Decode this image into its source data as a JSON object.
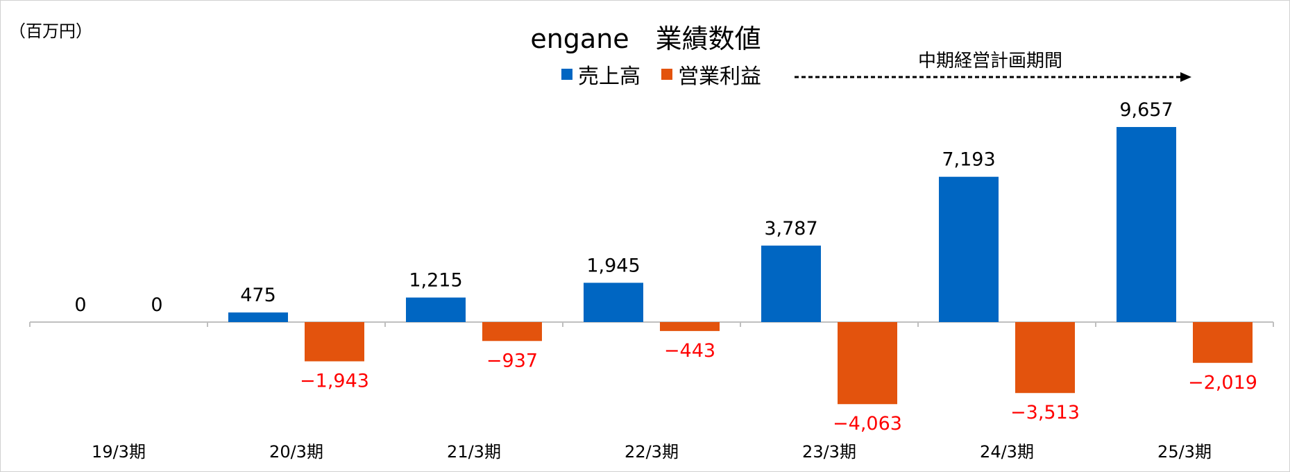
{
  "chart_data": {
    "type": "bar",
    "title": "engane　業績数値",
    "unit_label": "（百万円）",
    "categories": [
      "19/3期",
      "20/3期",
      "21/3期",
      "22/3期",
      "23/3期",
      "24/3期",
      "25/3期"
    ],
    "series": [
      {
        "name": "売上高",
        "color": "#0066c2",
        "values": [
          0,
          475,
          1215,
          1945,
          3787,
          7193,
          9657
        ],
        "labels": [
          "0",
          "475",
          "1,215",
          "1,945",
          "3,787",
          "7,193",
          "9,657"
        ]
      },
      {
        "name": "営業利益",
        "color": "#e3530d",
        "values": [
          0,
          -1943,
          -937,
          -443,
          -4063,
          -3513,
          -2019
        ],
        "labels": [
          "0",
          "−1,943",
          "−937",
          "−443",
          "−4,063",
          "−3,513",
          "−2,019"
        ]
      }
    ],
    "negative_label_color": "#ff0000",
    "annotation": {
      "text": "中期経営計画期間",
      "from_category": "23/3期",
      "to_category": "25/3期"
    },
    "legend_position": "top-center",
    "grid": false
  }
}
